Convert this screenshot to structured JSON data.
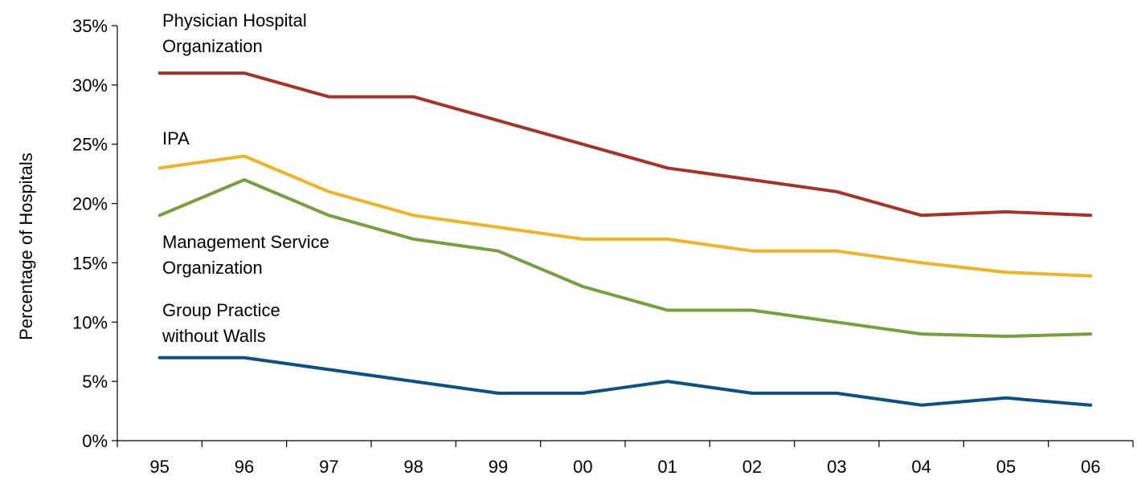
{
  "chart_data": {
    "type": "line",
    "title": "",
    "xlabel": "",
    "ylabel": "Percentage of Hospitals",
    "ylim": [
      0,
      35
    ],
    "yticks": [
      0,
      5,
      10,
      15,
      20,
      25,
      30,
      35
    ],
    "ytick_labels": [
      "0%",
      "5%",
      "10%",
      "15%",
      "20%",
      "25%",
      "30%",
      "35%"
    ],
    "categories": [
      "95",
      "96",
      "97",
      "98",
      "99",
      "00",
      "01",
      "02",
      "03",
      "04",
      "05",
      "06"
    ],
    "grid": false,
    "legend": "inline labels",
    "series": [
      {
        "name": "Physician Hospital Organization",
        "label_lines": [
          "Physician Hospital",
          "Organization"
        ],
        "color": "#A93226",
        "values": [
          31,
          31,
          29,
          29,
          27,
          25,
          23,
          22,
          21,
          19,
          19.3,
          19
        ]
      },
      {
        "name": "IPA",
        "label_lines": [
          "IPA"
        ],
        "color": "#F0B323",
        "values": [
          23,
          24,
          21,
          19,
          18,
          17,
          17,
          16,
          16,
          15,
          14.2,
          13.9
        ]
      },
      {
        "name": "Management Service Organization",
        "label_lines": [
          "Management Service",
          "Organization"
        ],
        "color": "#76A03C",
        "values": [
          19,
          22,
          19,
          17,
          16,
          13,
          11,
          11,
          10,
          9,
          8.8,
          9
        ]
      },
      {
        "name": "Group Practice without Walls",
        "label_lines": [
          "Group Practice",
          "without Walls"
        ],
        "color": "#0B5185",
        "values": [
          7,
          7,
          6,
          5,
          4,
          4,
          5,
          4,
          4,
          3,
          3.6,
          3
        ]
      }
    ]
  }
}
